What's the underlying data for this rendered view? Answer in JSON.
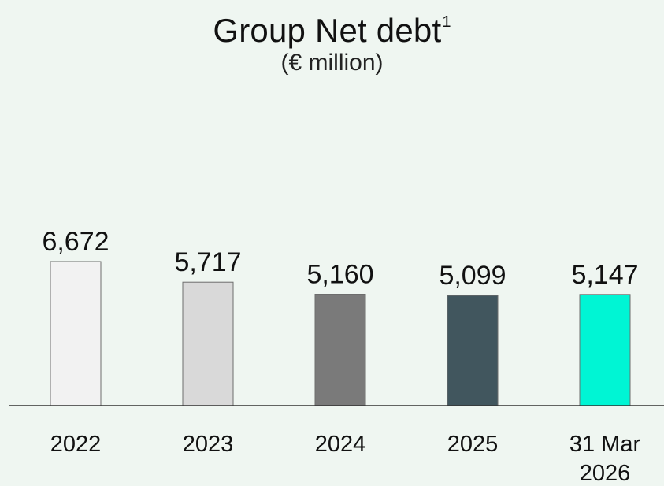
{
  "chart_data": {
    "type": "bar",
    "title": "Group Net debt",
    "title_superscript": "1",
    "subtitle": "(€ million)",
    "categories": [
      [
        "2022"
      ],
      [
        "2023"
      ],
      [
        "2024"
      ],
      [
        "2025"
      ],
      [
        "31 Mar",
        "2026"
      ]
    ],
    "values": [
      6672,
      5717,
      5160,
      5099,
      5147
    ],
    "value_labels": [
      "6,672",
      "5,717",
      "5,160",
      "5,099",
      "5,147"
    ],
    "bar_colors": [
      "#f2f2f2",
      "#d9d9d9",
      "#7a7a7a",
      "#41565e",
      "#00f5d4"
    ],
    "bar_stroke": "#6d6d6d",
    "axis_color": "#333333",
    "grid": false,
    "legend": "none"
  }
}
